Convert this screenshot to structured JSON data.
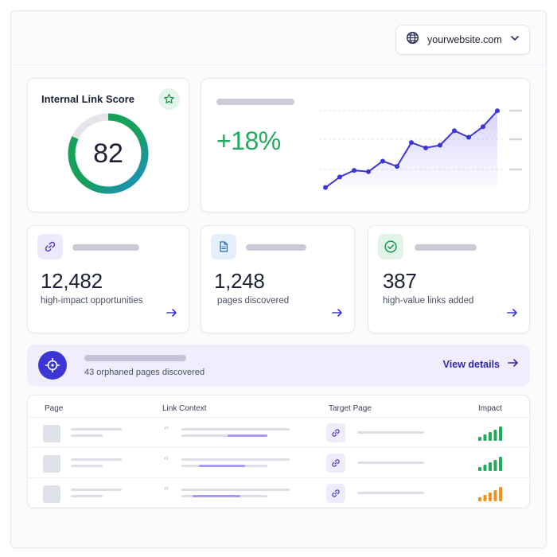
{
  "header": {
    "site": "yourwebsite.com",
    "site_icon": "globe-icon",
    "dropdown_icon": "chevron-down-icon"
  },
  "score_card": {
    "title": "Internal Link Score",
    "value": "82",
    "score": 82,
    "badge_icon": "star-icon",
    "colors": {
      "green": "#16a05a",
      "blue": "#1e8fcf",
      "track": "#e4e6ec"
    }
  },
  "growth_card": {
    "value": "+18%",
    "trend": [
      2,
      10,
      15,
      14,
      22,
      18,
      36,
      32,
      34,
      45,
      40,
      48,
      60
    ],
    "trend_ylim": [
      0,
      65
    ],
    "line_color": "#3b36d4",
    "value_color": "#1faa5c"
  },
  "stats": [
    {
      "value": "12,482",
      "label": "high-impact opportunities",
      "icon": "link-icon",
      "accent": "#4338ca"
    },
    {
      "value": "1,248",
      "label": "pages discovered",
      "icon": "document-icon",
      "accent": "#1d6fc0"
    },
    {
      "value": "387",
      "label": "high-value links added",
      "icon": "check-circle-icon",
      "accent": "#1a9a55"
    }
  ],
  "orphans": {
    "text": "43 orphaned pages discovered",
    "icon": "target-icon",
    "action": "View details"
  },
  "table": {
    "columns": [
      "Page",
      "Link Context",
      "Target Page",
      "Impact"
    ],
    "rows": [
      {
        "impact_level": 5,
        "impact_color": "#1faa5c"
      },
      {
        "impact_level": 5,
        "impact_color": "#1faa5c"
      },
      {
        "impact_level": 5,
        "impact_color": "#f0931c"
      }
    ]
  }
}
